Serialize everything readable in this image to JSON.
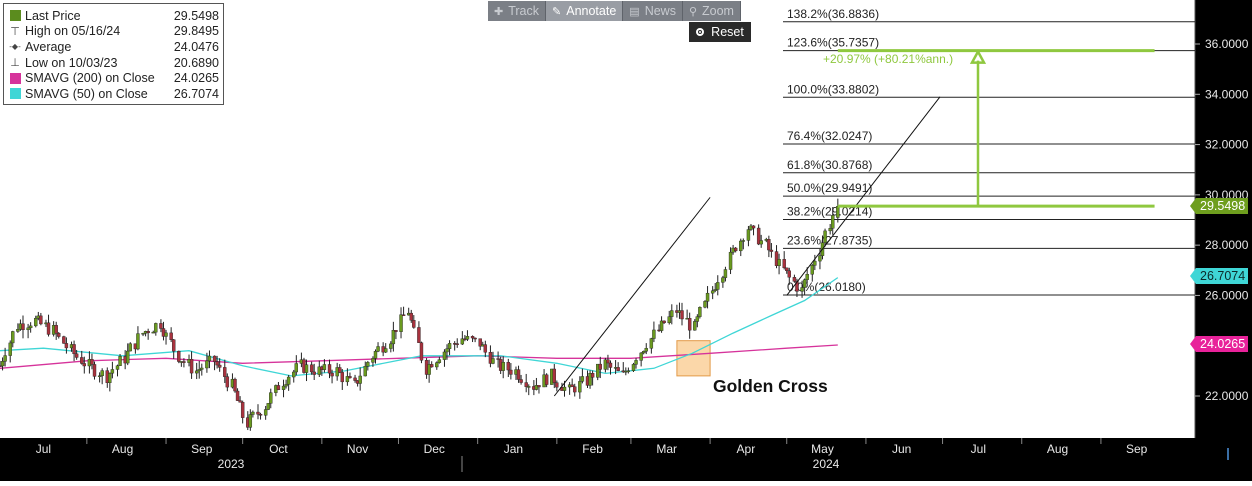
{
  "toolbar": {
    "items": [
      {
        "label": "Track",
        "icon": "move-icon"
      },
      {
        "label": "Annotate",
        "icon": "pencil-icon"
      },
      {
        "label": "News",
        "icon": "news-icon"
      },
      {
        "label": "Zoom",
        "icon": "magnifier-icon"
      }
    ],
    "active": "Annotate",
    "reset_label": "Reset"
  },
  "legend": {
    "rows": [
      {
        "label": "Last Price",
        "value": "29.5498",
        "marker": "green-square",
        "color": "#5b8c1e"
      },
      {
        "label": "High on 05/16/24",
        "value": "29.8495",
        "marker": "high-tick"
      },
      {
        "label": "Average",
        "value": "24.0476",
        "marker": "average-dash"
      },
      {
        "label": "Low on 10/03/23",
        "value": "20.6890",
        "marker": "low-tick"
      },
      {
        "label": "SMAVG (200)  on Close",
        "value": "24.0265",
        "marker": "magenta-square",
        "color": "#d6339b"
      },
      {
        "label": "SMAVG (50)  on Close",
        "value": "26.7074",
        "marker": "cyan-square",
        "color": "#3fd6d6"
      }
    ]
  },
  "price_tags": {
    "last": "29.5498",
    "sma50": "26.7074",
    "sma200": "24.0265"
  },
  "annotations": {
    "golden_cross": "Golden Cross",
    "gain": "+20.97% (+80.21%ann.)"
  },
  "chart_data": {
    "type": "line",
    "subtype": "ohlc-bars",
    "title": "",
    "xlabel": "",
    "ylabel": "",
    "x_axis": {
      "month_labels": [
        "Jul",
        "Aug",
        "Sep",
        "Oct",
        "Nov",
        "Dec",
        "Jan",
        "Feb",
        "Mar",
        "Apr",
        "May",
        "Jun",
        "Jul",
        "Aug",
        "Sep"
      ],
      "year_labels": [
        "2023",
        "2024"
      ],
      "range": [
        "2023-06-28",
        "2024-09-30"
      ]
    },
    "y_axis": {
      "side": "right",
      "ticks": [
        "22.0000",
        "24.0000",
        "26.0000",
        "28.0000",
        "30.0000",
        "32.0000",
        "34.0000",
        "36.0000"
      ],
      "ylim": [
        20.4,
        37.6
      ]
    },
    "grid": false,
    "series": [
      {
        "name": "Last Price",
        "style": "ohlc",
        "color": "#5b8c1e",
        "points": [
          [
            "2023-06-28",
            23.2
          ],
          [
            "2023-07-05",
            24.8
          ],
          [
            "2023-07-12",
            25.0
          ],
          [
            "2023-07-19",
            24.6
          ],
          [
            "2023-07-26",
            23.8
          ],
          [
            "2023-08-02",
            23.2
          ],
          [
            "2023-08-09",
            22.8
          ],
          [
            "2023-08-16",
            23.5
          ],
          [
            "2023-08-23",
            24.5
          ],
          [
            "2023-08-30",
            24.9
          ],
          [
            "2023-09-06",
            23.6
          ],
          [
            "2023-09-13",
            23.0
          ],
          [
            "2023-09-20",
            23.4
          ],
          [
            "2023-09-27",
            22.4
          ],
          [
            "2023-10-03",
            20.9
          ],
          [
            "2023-10-10",
            21.6
          ],
          [
            "2023-10-17",
            22.6
          ],
          [
            "2023-10-24",
            23.2
          ],
          [
            "2023-10-31",
            23.0
          ],
          [
            "2023-11-07",
            23.0
          ],
          [
            "2023-11-14",
            22.4
          ],
          [
            "2023-11-21",
            23.6
          ],
          [
            "2023-11-28",
            24.3
          ],
          [
            "2023-12-05",
            25.4
          ],
          [
            "2023-12-12",
            23.1
          ],
          [
            "2023-12-19",
            23.8
          ],
          [
            "2023-12-26",
            24.3
          ],
          [
            "2024-01-02",
            24.1
          ],
          [
            "2024-01-09",
            23.2
          ],
          [
            "2024-01-16",
            23.0
          ],
          [
            "2024-01-23",
            22.4
          ],
          [
            "2024-01-30",
            22.8
          ],
          [
            "2024-02-06",
            22.2
          ],
          [
            "2024-02-13",
            22.6
          ],
          [
            "2024-02-20",
            23.3
          ],
          [
            "2024-02-27",
            22.8
          ],
          [
            "2024-03-05",
            23.8
          ],
          [
            "2024-03-12",
            24.6
          ],
          [
            "2024-03-19",
            25.4
          ],
          [
            "2024-03-26",
            24.7
          ],
          [
            "2024-04-02",
            26.2
          ],
          [
            "2024-04-09",
            27.5
          ],
          [
            "2024-04-16",
            28.7
          ],
          [
            "2024-04-23",
            28.0
          ],
          [
            "2024-04-30",
            27.0
          ],
          [
            "2024-05-07",
            26.2
          ],
          [
            "2024-05-14",
            27.8
          ],
          [
            "2024-05-21",
            29.55
          ]
        ]
      },
      {
        "name": "SMAVG (200)  on Close",
        "style": "line",
        "color": "#d6339b",
        "points": [
          [
            "2023-06-28",
            23.1
          ],
          [
            "2023-08-01",
            23.4
          ],
          [
            "2023-09-01",
            23.5
          ],
          [
            "2023-10-01",
            23.3
          ],
          [
            "2023-11-01",
            23.4
          ],
          [
            "2023-12-01",
            23.5
          ],
          [
            "2024-01-01",
            23.6
          ],
          [
            "2024-02-01",
            23.5
          ],
          [
            "2024-03-01",
            23.5
          ],
          [
            "2024-04-01",
            23.7
          ],
          [
            "2024-05-01",
            23.9
          ],
          [
            "2024-05-21",
            24.0265
          ]
        ]
      },
      {
        "name": "SMAVG (50)  on Close",
        "style": "line",
        "color": "#3fd6d6",
        "points": [
          [
            "2023-06-28",
            23.8
          ],
          [
            "2023-07-15",
            23.9
          ],
          [
            "2023-08-15",
            23.6
          ],
          [
            "2023-09-10",
            23.8
          ],
          [
            "2023-10-01",
            23.2
          ],
          [
            "2023-10-20",
            22.8
          ],
          [
            "2023-11-10",
            23.0
          ],
          [
            "2023-12-10",
            23.6
          ],
          [
            "2024-01-10",
            23.6
          ],
          [
            "2024-02-01",
            23.3
          ],
          [
            "2024-02-20",
            22.9
          ],
          [
            "2024-03-10",
            23.1
          ],
          [
            "2024-03-25",
            23.7
          ],
          [
            "2024-04-10",
            24.5
          ],
          [
            "2024-04-25",
            25.2
          ],
          [
            "2024-05-08",
            25.8
          ],
          [
            "2024-05-21",
            26.7074
          ]
        ]
      }
    ],
    "fibonacci": [
      {
        "label": "0.0%(26.0180)",
        "value": 26.018
      },
      {
        "label": "23.6%(27.8735)",
        "value": 27.8735
      },
      {
        "label": "38.2%(29.0214)",
        "value": 29.0214
      },
      {
        "label": "50.0%(29.9491)",
        "value": 29.9491
      },
      {
        "label": "61.8%(30.8768)",
        "value": 30.8768
      },
      {
        "label": "76.4%(32.0247)",
        "value": 32.0247
      },
      {
        "label": "100.0%(33.8802)",
        "value": 33.8802
      },
      {
        "label": "123.6%(35.7357)",
        "value": 35.7357
      },
      {
        "label": "138.2%(36.8836)",
        "value": 36.8836
      }
    ],
    "trend_lines": [
      {
        "from": [
          "2024-01-31",
          22.0
        ],
        "to": [
          "2024-04-01",
          29.9
        ]
      },
      {
        "from": [
          "2024-05-01",
          26.0
        ],
        "to": [
          "2024-06-30",
          33.9
        ]
      }
    ],
    "golden_cross_zone": {
      "x_range": [
        "2024-03-19",
        "2024-04-01"
      ],
      "y_range": [
        22.8,
        24.2
      ]
    },
    "target_projection": {
      "from": 29.5498,
      "to": 35.7357,
      "date_from": "2024-05-21",
      "date_to": "2024-09-22"
    }
  }
}
